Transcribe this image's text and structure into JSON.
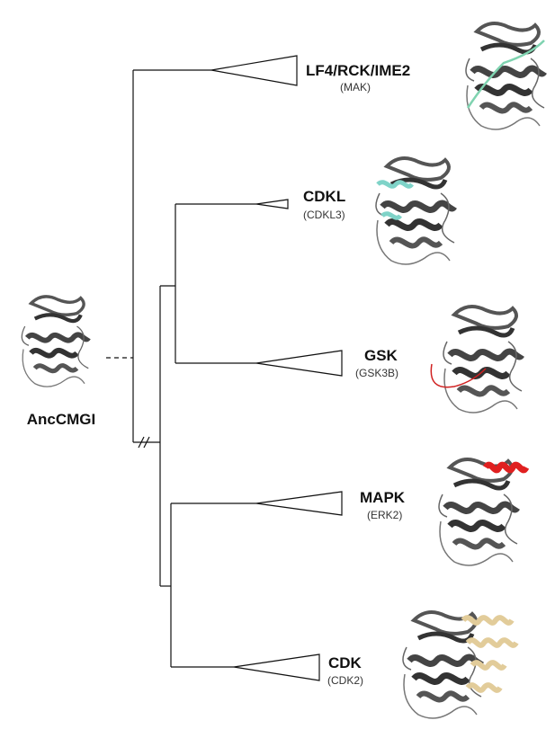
{
  "root": {
    "label": "AncCMGI"
  },
  "nodes": [
    {
      "label": "LF4/RCK/IME2",
      "sublabel": "(MAK)"
    },
    {
      "label": "CDKL",
      "sublabel": "(CDKL3)"
    },
    {
      "label": "GSK",
      "sublabel": "(GSK3B)"
    },
    {
      "label": "MAPK",
      "sublabel": "(ERK2)"
    },
    {
      "label": "CDK",
      "sublabel": "(CDK2)"
    }
  ]
}
